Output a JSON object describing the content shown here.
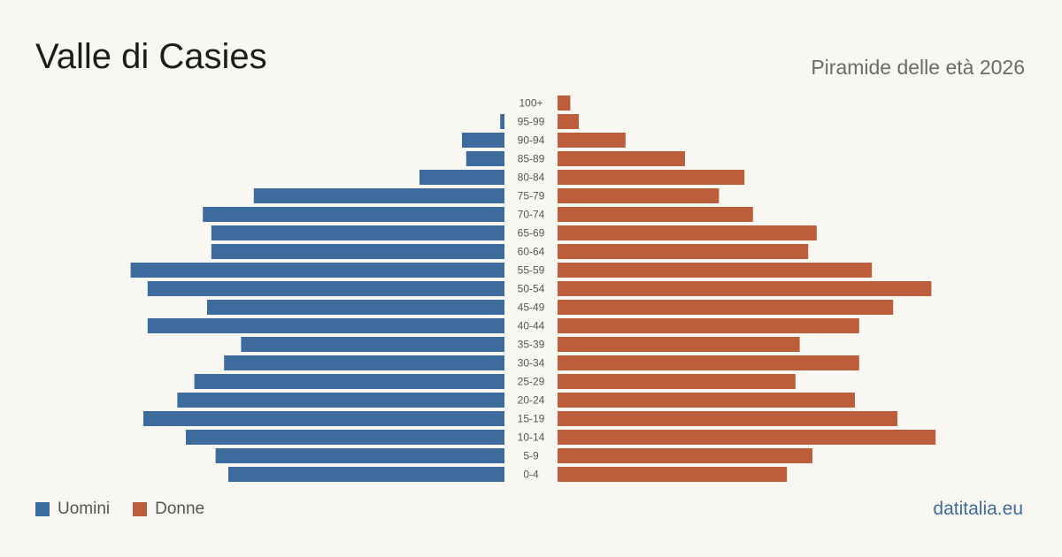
{
  "header": {
    "title": "Valle di Casies",
    "subtitle": "Piramide delle età 2026"
  },
  "legend": {
    "men_label": "Uomini",
    "women_label": "Donne"
  },
  "footer": {
    "brand": "datitalia.eu"
  },
  "colors": {
    "men": "#3d6b9e",
    "women": "#bc5d3c",
    "background": "#f9f7f2"
  },
  "chart_data": {
    "type": "bar",
    "orientation": "horizontal-pyramid",
    "title": "Valle di Casies",
    "subtitle": "Piramide delle età 2026",
    "categories": [
      "100+",
      "95-99",
      "90-94",
      "85-89",
      "80-84",
      "75-79",
      "70-74",
      "65-69",
      "60-64",
      "55-59",
      "50-54",
      "45-49",
      "40-44",
      "35-39",
      "30-34",
      "25-29",
      "20-24",
      "15-19",
      "10-14",
      "5-9",
      "0-4"
    ],
    "series": [
      {
        "name": "Uomini",
        "values": [
          0,
          1,
          10,
          9,
          20,
          59,
          71,
          69,
          69,
          88,
          84,
          70,
          84,
          62,
          66,
          73,
          77,
          85,
          75,
          68,
          65
        ]
      },
      {
        "name": "Donne",
        "values": [
          3,
          5,
          16,
          30,
          44,
          38,
          46,
          61,
          59,
          74,
          88,
          79,
          71,
          57,
          71,
          56,
          70,
          80,
          89,
          60,
          54
        ]
      }
    ],
    "legend_position": "bottom-left",
    "grid": false
  }
}
